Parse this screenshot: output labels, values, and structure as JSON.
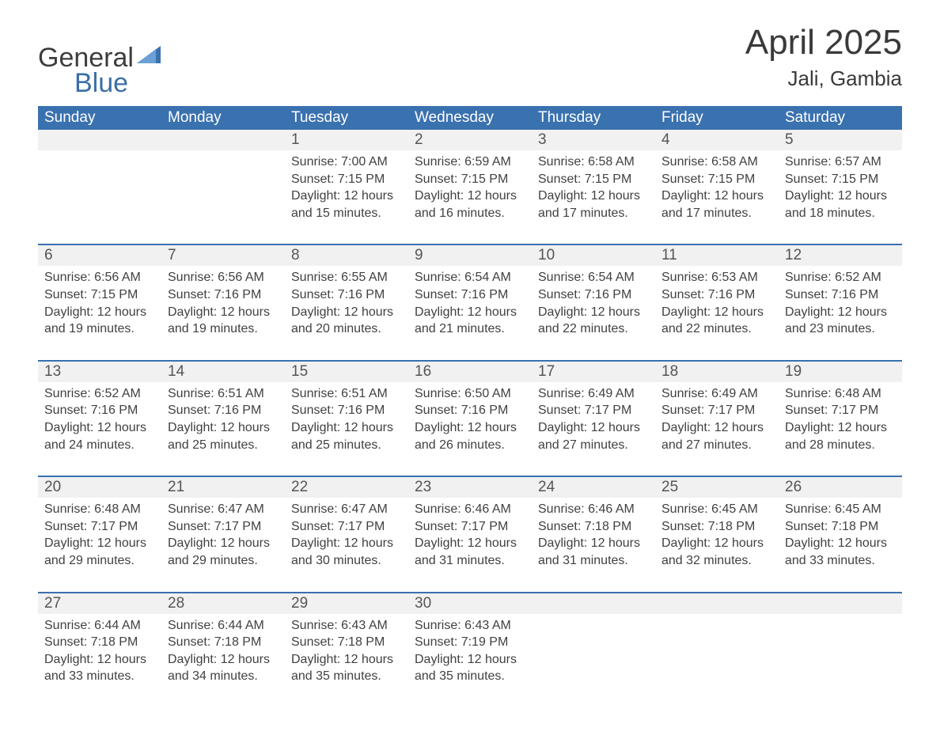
{
  "logo": {
    "line1": "General",
    "line2": "Blue"
  },
  "title": "April 2025",
  "location": "Jali, Gambia",
  "colors": {
    "header_bg": "#3a71af",
    "header_text": "#ffffff",
    "numrow_bg": "#f1f1f1",
    "row_border": "#3a71af",
    "body_bg": "#ffffff",
    "text": "#414141",
    "logo_gray": "#3d3d3d",
    "logo_blue": "#3a6fa7"
  },
  "day_headers": [
    "Sunday",
    "Monday",
    "Tuesday",
    "Wednesday",
    "Thursday",
    "Friday",
    "Saturday"
  ],
  "weeks": [
    [
      {
        "n": "",
        "sunrise": "",
        "sunset": "",
        "daylight": ""
      },
      {
        "n": "",
        "sunrise": "",
        "sunset": "",
        "daylight": ""
      },
      {
        "n": "1",
        "sunrise": "Sunrise: 7:00 AM",
        "sunset": "Sunset: 7:15 PM",
        "daylight": "Daylight: 12 hours and 15 minutes."
      },
      {
        "n": "2",
        "sunrise": "Sunrise: 6:59 AM",
        "sunset": "Sunset: 7:15 PM",
        "daylight": "Daylight: 12 hours and 16 minutes."
      },
      {
        "n": "3",
        "sunrise": "Sunrise: 6:58 AM",
        "sunset": "Sunset: 7:15 PM",
        "daylight": "Daylight: 12 hours and 17 minutes."
      },
      {
        "n": "4",
        "sunrise": "Sunrise: 6:58 AM",
        "sunset": "Sunset: 7:15 PM",
        "daylight": "Daylight: 12 hours and 17 minutes."
      },
      {
        "n": "5",
        "sunrise": "Sunrise: 6:57 AM",
        "sunset": "Sunset: 7:15 PM",
        "daylight": "Daylight: 12 hours and 18 minutes."
      }
    ],
    [
      {
        "n": "6",
        "sunrise": "Sunrise: 6:56 AM",
        "sunset": "Sunset: 7:15 PM",
        "daylight": "Daylight: 12 hours and 19 minutes."
      },
      {
        "n": "7",
        "sunrise": "Sunrise: 6:56 AM",
        "sunset": "Sunset: 7:16 PM",
        "daylight": "Daylight: 12 hours and 19 minutes."
      },
      {
        "n": "8",
        "sunrise": "Sunrise: 6:55 AM",
        "sunset": "Sunset: 7:16 PM",
        "daylight": "Daylight: 12 hours and 20 minutes."
      },
      {
        "n": "9",
        "sunrise": "Sunrise: 6:54 AM",
        "sunset": "Sunset: 7:16 PM",
        "daylight": "Daylight: 12 hours and 21 minutes."
      },
      {
        "n": "10",
        "sunrise": "Sunrise: 6:54 AM",
        "sunset": "Sunset: 7:16 PM",
        "daylight": "Daylight: 12 hours and 22 minutes."
      },
      {
        "n": "11",
        "sunrise": "Sunrise: 6:53 AM",
        "sunset": "Sunset: 7:16 PM",
        "daylight": "Daylight: 12 hours and 22 minutes."
      },
      {
        "n": "12",
        "sunrise": "Sunrise: 6:52 AM",
        "sunset": "Sunset: 7:16 PM",
        "daylight": "Daylight: 12 hours and 23 minutes."
      }
    ],
    [
      {
        "n": "13",
        "sunrise": "Sunrise: 6:52 AM",
        "sunset": "Sunset: 7:16 PM",
        "daylight": "Daylight: 12 hours and 24 minutes."
      },
      {
        "n": "14",
        "sunrise": "Sunrise: 6:51 AM",
        "sunset": "Sunset: 7:16 PM",
        "daylight": "Daylight: 12 hours and 25 minutes."
      },
      {
        "n": "15",
        "sunrise": "Sunrise: 6:51 AM",
        "sunset": "Sunset: 7:16 PM",
        "daylight": "Daylight: 12 hours and 25 minutes."
      },
      {
        "n": "16",
        "sunrise": "Sunrise: 6:50 AM",
        "sunset": "Sunset: 7:16 PM",
        "daylight": "Daylight: 12 hours and 26 minutes."
      },
      {
        "n": "17",
        "sunrise": "Sunrise: 6:49 AM",
        "sunset": "Sunset: 7:17 PM",
        "daylight": "Daylight: 12 hours and 27 minutes."
      },
      {
        "n": "18",
        "sunrise": "Sunrise: 6:49 AM",
        "sunset": "Sunset: 7:17 PM",
        "daylight": "Daylight: 12 hours and 27 minutes."
      },
      {
        "n": "19",
        "sunrise": "Sunrise: 6:48 AM",
        "sunset": "Sunset: 7:17 PM",
        "daylight": "Daylight: 12 hours and 28 minutes."
      }
    ],
    [
      {
        "n": "20",
        "sunrise": "Sunrise: 6:48 AM",
        "sunset": "Sunset: 7:17 PM",
        "daylight": "Daylight: 12 hours and 29 minutes."
      },
      {
        "n": "21",
        "sunrise": "Sunrise: 6:47 AM",
        "sunset": "Sunset: 7:17 PM",
        "daylight": "Daylight: 12 hours and 29 minutes."
      },
      {
        "n": "22",
        "sunrise": "Sunrise: 6:47 AM",
        "sunset": "Sunset: 7:17 PM",
        "daylight": "Daylight: 12 hours and 30 minutes."
      },
      {
        "n": "23",
        "sunrise": "Sunrise: 6:46 AM",
        "sunset": "Sunset: 7:17 PM",
        "daylight": "Daylight: 12 hours and 31 minutes."
      },
      {
        "n": "24",
        "sunrise": "Sunrise: 6:46 AM",
        "sunset": "Sunset: 7:18 PM",
        "daylight": "Daylight: 12 hours and 31 minutes."
      },
      {
        "n": "25",
        "sunrise": "Sunrise: 6:45 AM",
        "sunset": "Sunset: 7:18 PM",
        "daylight": "Daylight: 12 hours and 32 minutes."
      },
      {
        "n": "26",
        "sunrise": "Sunrise: 6:45 AM",
        "sunset": "Sunset: 7:18 PM",
        "daylight": "Daylight: 12 hours and 33 minutes."
      }
    ],
    [
      {
        "n": "27",
        "sunrise": "Sunrise: 6:44 AM",
        "sunset": "Sunset: 7:18 PM",
        "daylight": "Daylight: 12 hours and 33 minutes."
      },
      {
        "n": "28",
        "sunrise": "Sunrise: 6:44 AM",
        "sunset": "Sunset: 7:18 PM",
        "daylight": "Daylight: 12 hours and 34 minutes."
      },
      {
        "n": "29",
        "sunrise": "Sunrise: 6:43 AM",
        "sunset": "Sunset: 7:18 PM",
        "daylight": "Daylight: 12 hours and 35 minutes."
      },
      {
        "n": "30",
        "sunrise": "Sunrise: 6:43 AM",
        "sunset": "Sunset: 7:19 PM",
        "daylight": "Daylight: 12 hours and 35 minutes."
      },
      {
        "n": "",
        "sunrise": "",
        "sunset": "",
        "daylight": ""
      },
      {
        "n": "",
        "sunrise": "",
        "sunset": "",
        "daylight": ""
      },
      {
        "n": "",
        "sunrise": "",
        "sunset": "",
        "daylight": ""
      }
    ]
  ]
}
